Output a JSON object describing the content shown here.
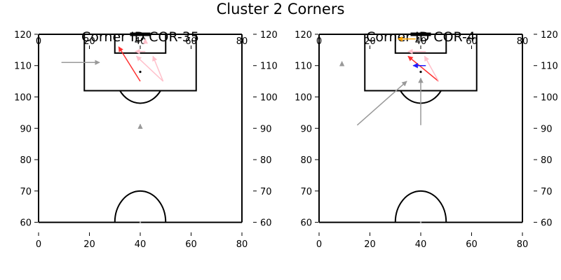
{
  "figure": {
    "suptitle": "Cluster 2 Corners",
    "colors": {
      "pitch_line": "#000000",
      "red": "#ff3030",
      "pink": "#ffc0cb",
      "grey": "#999999",
      "orange": "#ffa500",
      "blue": "#1f1fff",
      "ball_dot": "#000000"
    }
  },
  "chart_data": [
    {
      "type": "scatter",
      "title": "Corner ID COR-35",
      "xlim": [
        0,
        80
      ],
      "ylim": [
        55,
        122
      ],
      "x_ticks": [
        0,
        20,
        40,
        60,
        80
      ],
      "y_ticks": [
        60,
        70,
        80,
        90,
        100,
        110,
        120
      ],
      "x_tick_labels": [
        "0",
        "20",
        "40",
        "60",
        "80"
      ],
      "y_tick_labels": [
        "60",
        "70",
        "80",
        "90",
        "100",
        "110",
        "120"
      ],
      "pitch": {
        "width": 80,
        "goal_line_y": 120,
        "halfway_y": 60
      },
      "arrows": [
        {
          "color": "red",
          "from": [
            40,
            105
          ],
          "to": [
            31.5,
            116
          ]
        },
        {
          "color": "pink",
          "from": [
            49,
            105
          ],
          "to": [
            45,
            113
          ]
        },
        {
          "color": "pink",
          "from": [
            49,
            105
          ],
          "to": [
            38.5,
            113
          ]
        },
        {
          "color": "pink",
          "from": [
            42,
            114.5
          ],
          "to": [
            38,
            114.5
          ]
        },
        {
          "color": "pink",
          "from": [
            42,
            117.5
          ],
          "to": [
            42,
            118.5
          ]
        },
        {
          "color": "grey",
          "from": [
            9,
            111
          ],
          "to": [
            24,
            111
          ]
        },
        {
          "color": "grey",
          "from": [
            40,
            90.5
          ],
          "to": [
            40,
            91.3
          ]
        }
      ],
      "points": [
        {
          "x": 40,
          "y": 108
        }
      ]
    },
    {
      "type": "scatter",
      "title": "Corner ID COR-4",
      "xlim": [
        0,
        80
      ],
      "ylim": [
        55,
        122
      ],
      "x_ticks": [
        0,
        20,
        40,
        60,
        80
      ],
      "y_ticks": [
        60,
        70,
        80,
        90,
        100,
        110,
        120
      ],
      "x_tick_labels": [
        "0",
        "20",
        "40",
        "60",
        "80"
      ],
      "y_tick_labels": [
        "60",
        "70",
        "80",
        "90",
        "100",
        "110",
        "120"
      ],
      "pitch": {
        "width": 80,
        "goal_line_y": 120,
        "halfway_y": 60
      },
      "arrows": [
        {
          "color": "red",
          "from": [
            47,
            105
          ],
          "to": [
            35,
            113
          ]
        },
        {
          "color": "pink",
          "from": [
            47,
            105
          ],
          "to": [
            41.5,
            113
          ]
        },
        {
          "color": "pink",
          "from": [
            42,
            114.5
          ],
          "to": [
            35,
            114.5
          ]
        },
        {
          "color": "orange",
          "from": [
            38,
            118.5
          ],
          "to": [
            31,
            118.5
          ]
        },
        {
          "color": "blue",
          "from": [
            42,
            110
          ],
          "to": [
            37,
            110
          ]
        },
        {
          "color": "grey",
          "from": [
            15,
            91
          ],
          "to": [
            34.5,
            105
          ]
        },
        {
          "color": "grey",
          "from": [
            40,
            91
          ],
          "to": [
            40,
            106
          ]
        },
        {
          "color": "grey",
          "from": [
            9,
            110.5
          ],
          "to": [
            9,
            111.3
          ]
        }
      ],
      "points": [
        {
          "x": 40,
          "y": 108
        }
      ]
    }
  ]
}
